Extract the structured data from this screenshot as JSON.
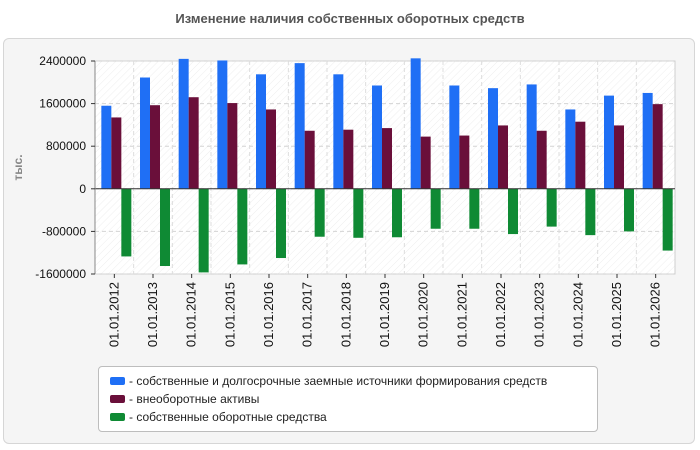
{
  "chart_data": {
    "type": "bar",
    "title": "Изменение наличия собственных оборотных средств",
    "ylabel": "тыс.",
    "xlabel": "",
    "ylim": [
      -1600000,
      2400000
    ],
    "yticks": [
      2400000,
      1600000,
      800000,
      0,
      -800000,
      -1600000
    ],
    "categories": [
      "01.01.2012",
      "01.01.2013",
      "01.01.2014",
      "01.01.2015",
      "01.01.2016",
      "01.01.2017",
      "01.01.2018",
      "01.01.2019",
      "01.01.2020",
      "01.01.2021",
      "01.01.2022",
      "01.01.2023",
      "01.01.2024",
      "01.01.2025",
      "01.01.2026"
    ],
    "series": [
      {
        "name": "- собственные и долгосрочные заемные источники формирования средств",
        "color": "#1f6ff5",
        "values": [
          1560000,
          2090000,
          2440000,
          2410000,
          2150000,
          2360000,
          2150000,
          1940000,
          2450000,
          1940000,
          1890000,
          1960000,
          1490000,
          1750000,
          1800000
        ]
      },
      {
        "name": "- внеоборотные активы",
        "color": "#6a0f3a",
        "values": [
          1340000,
          1570000,
          1720000,
          1610000,
          1490000,
          1090000,
          1110000,
          1140000,
          980000,
          1000000,
          1190000,
          1090000,
          1260000,
          1190000,
          1590000
        ]
      },
      {
        "name": "- собственные оборотные средства",
        "color": "#0f8a34",
        "values": [
          -1270000,
          -1450000,
          -1570000,
          -1420000,
          -1300000,
          -900000,
          -920000,
          -910000,
          -750000,
          -750000,
          -850000,
          -710000,
          -870000,
          -800000,
          -1160000
        ]
      }
    ],
    "grid": true,
    "legend_position": "bottom"
  }
}
